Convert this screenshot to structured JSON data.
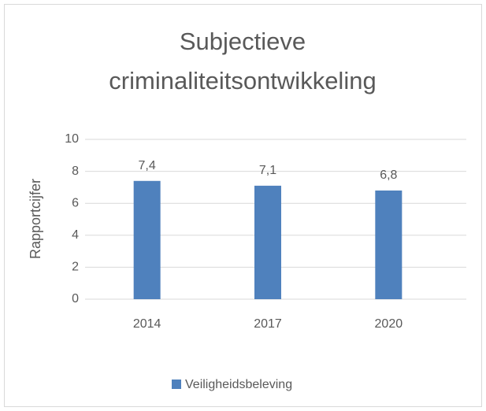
{
  "chart_data": {
    "type": "bar",
    "title": "Subjectieve criminaliteitsontwikkeling",
    "categories": [
      "2014",
      "2017",
      "2020"
    ],
    "values": [
      7.4,
      7.1,
      6.8
    ],
    "value_labels": [
      "7,4",
      "7,1",
      "6,8"
    ],
    "color": "#4f81bd",
    "ylabel": "Rapportcijfer",
    "ylim": [
      0,
      10
    ],
    "yticks": [
      0,
      2,
      4,
      6,
      8,
      10
    ],
    "grid": true,
    "legend": {
      "position": "bottom",
      "labels": [
        "Veiligheidsbeleving"
      ]
    }
  }
}
